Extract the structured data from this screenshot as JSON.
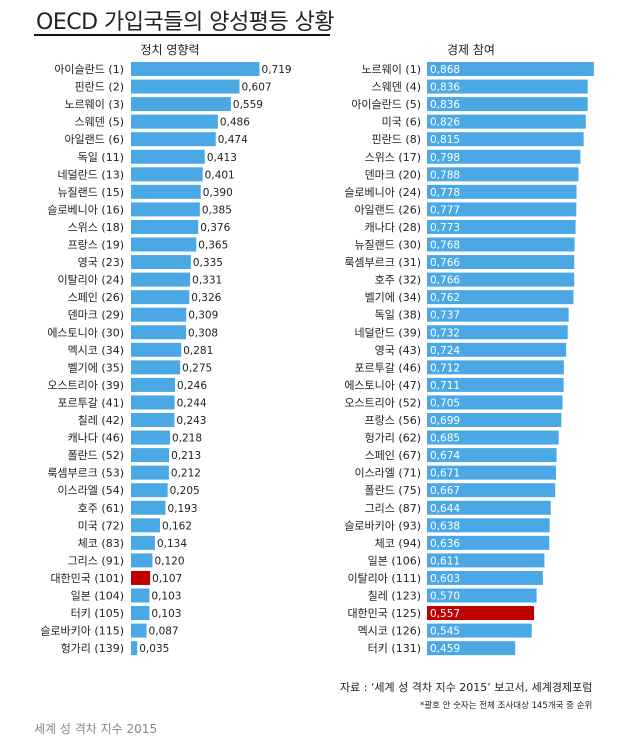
{
  "page": {
    "title": "OECD 가입국들의 양성평등 상황",
    "source": "자료 : ‘세계 성 격차 지수 2015’ 보고서, 세계경제포럼",
    "footnote": "*괄호 안 숫자는 전체 조사대상 145개국 중 순위",
    "caption": "세계 성 격차 지수 2015"
  },
  "colors": {
    "bar": "#4aa8e4",
    "highlight_bar": "#c00000",
    "highlight_label": "#d00000"
  },
  "chart_data": [
    {
      "type": "bar",
      "orientation": "horizontal",
      "title": "정치 영향력",
      "xlim": [
        0,
        0.8
      ],
      "value_label_position": "outside",
      "highlight": "대한민국 (101)",
      "categories": [
        "아이슬란드 (1)",
        "핀란드 (2)",
        "노르웨이 (3)",
        "스웨덴 (5)",
        "아일랜드 (6)",
        "독일 (11)",
        "네덜란드 (13)",
        "뉴질랜드 (15)",
        "슬로베니아 (16)",
        "스위스 (18)",
        "프랑스 (19)",
        "영국 (23)",
        "이탈리아 (24)",
        "스페인 (26)",
        "덴마크 (29)",
        "에스토니아 (30)",
        "멕시코 (34)",
        "벨기에 (35)",
        "오스트리아 (39)",
        "포르투갈 (41)",
        "칠레 (42)",
        "캐나다 (46)",
        "폴란드 (52)",
        "룩셈부르크 (53)",
        "이스라엘 (54)",
        "호주 (61)",
        "미국 (72)",
        "체코 (83)",
        "그리스 (91)",
        "대한민국 (101)",
        "일본 (104)",
        "터키 (105)",
        "슬로바키아 (115)",
        "헝가리 (139)"
      ],
      "values": [
        0.719,
        0.607,
        0.559,
        0.486,
        0.474,
        0.413,
        0.401,
        0.39,
        0.385,
        0.376,
        0.365,
        0.335,
        0.331,
        0.326,
        0.309,
        0.308,
        0.281,
        0.275,
        0.246,
        0.244,
        0.243,
        0.218,
        0.213,
        0.212,
        0.205,
        0.193,
        0.162,
        0.134,
        0.12,
        0.107,
        0.103,
        0.103,
        0.087,
        0.035
      ],
      "value_labels": [
        "0,719",
        "0,607",
        "0,559",
        "0,486",
        "0,474",
        "0,413",
        "0,401",
        "0,390",
        "0,385",
        "0,376",
        "0,365",
        "0,335",
        "0,331",
        "0,326",
        "0,309",
        "0,308",
        "0,281",
        "0,275",
        "0,246",
        "0,244",
        "0,243",
        "0,218",
        "0,213",
        "0,212",
        "0,205",
        "0,193",
        "0,162",
        "0,134",
        "0,120",
        "0,107",
        "0,103",
        "0,103",
        "0,087",
        "0,035"
      ]
    },
    {
      "type": "bar",
      "orientation": "horizontal",
      "title": "경제 참여",
      "xlim": [
        0,
        0.9
      ],
      "value_label_position": "inside",
      "highlight": "대한민국 (125)",
      "categories": [
        "노르웨이 (1)",
        "스웨덴 (4)",
        "아이슬란드 (5)",
        "미국 (6)",
        "핀란드 (8)",
        "스위스 (17)",
        "덴마크 (20)",
        "슬로베니아 (24)",
        "아일랜드 (26)",
        "캐나다 (28)",
        "뉴질랜드 (30)",
        "룩셈부르크 (31)",
        "호주 (32)",
        "벨기에 (34)",
        "독일 (38)",
        "네덜란드 (39)",
        "영국 (43)",
        "포르투갈 (46)",
        "에스토니아 (47)",
        "오스트리아 (52)",
        "프랑스 (56)",
        "헝가리 (62)",
        "스페인 (67)",
        "이스라엘 (71)",
        "폴란드 (75)",
        "그리스 (87)",
        "슬로바키아 (93)",
        "체코 (94)",
        "일본 (106)",
        "이탈리아 (111)",
        "칠레 (123)",
        "대한민국 (125)",
        "멕시코 (126)",
        "터키 (131)"
      ],
      "values": [
        0.868,
        0.836,
        0.836,
        0.826,
        0.815,
        0.798,
        0.788,
        0.778,
        0.777,
        0.773,
        0.768,
        0.766,
        0.766,
        0.762,
        0.737,
        0.732,
        0.724,
        0.712,
        0.711,
        0.705,
        0.699,
        0.685,
        0.674,
        0.671,
        0.667,
        0.644,
        0.638,
        0.636,
        0.611,
        0.603,
        0.57,
        0.557,
        0.545,
        0.459
      ],
      "value_labels": [
        "0,868",
        "0,836",
        "0,836",
        "0,826",
        "0,815",
        "0,798",
        "0,788",
        "0,778",
        "0,777",
        "0,773",
        "0,768",
        "0,766",
        "0,766",
        "0,762",
        "0,737",
        "0,732",
        "0,724",
        "0,712",
        "0,711",
        "0,705",
        "0,699",
        "0,685",
        "0,674",
        "0,671",
        "0,667",
        "0,644",
        "0,638",
        "0,636",
        "0,611",
        "0,603",
        "0,570",
        "0,557",
        "0,545",
        "0,459"
      ]
    }
  ]
}
